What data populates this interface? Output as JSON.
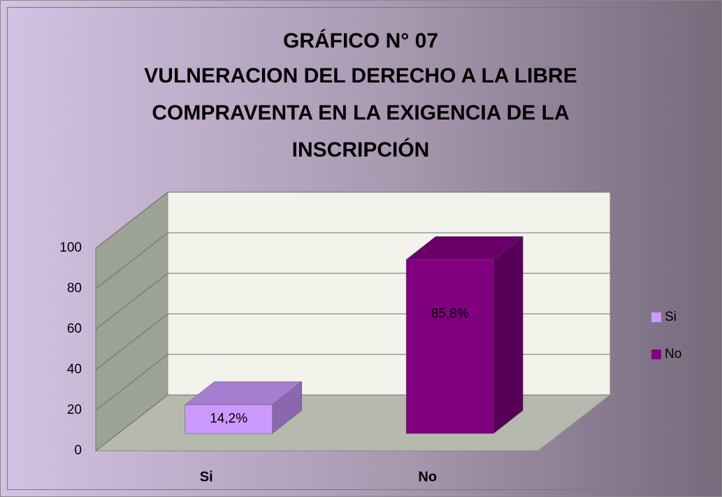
{
  "chart_data": {
    "type": "bar3d",
    "title": "GRÁFICO N° 07",
    "subtitle": "VULNERACION DEL DERECHO A LA LIBRE COMPRAVENTA EN LA EXIGENCIA DE LA INSCRIPCIÓN",
    "categories": [
      "Si",
      "No"
    ],
    "series": [
      {
        "name": "Si",
        "color": "#cc99ff",
        "values": [
          14.2,
          null
        ],
        "value_labels": [
          "14,2%",
          null
        ]
      },
      {
        "name": "No",
        "color": "#800080",
        "values": [
          null,
          85.8
        ],
        "value_labels": [
          null,
          "85,8%"
        ]
      }
    ],
    "ylim": [
      0,
      100
    ],
    "yticks": [
      0,
      20,
      40,
      60,
      80,
      100
    ],
    "grid": true,
    "legend": "right"
  }
}
